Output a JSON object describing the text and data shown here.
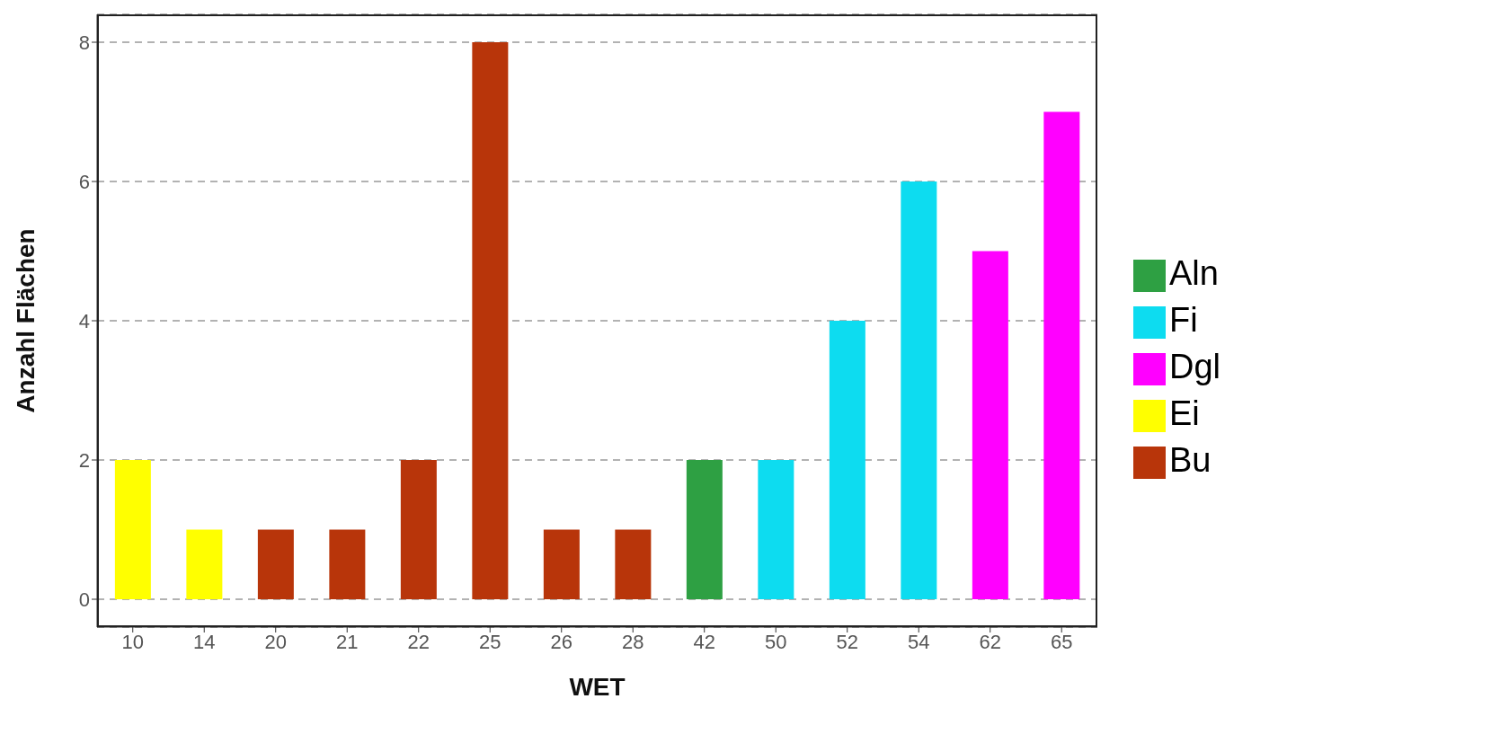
{
  "chart_data": {
    "type": "bar",
    "xlabel": "WET",
    "ylabel": "Anzahl Flächen",
    "categories": [
      "10",
      "14",
      "20",
      "21",
      "22",
      "25",
      "26",
      "28",
      "42",
      "50",
      "52",
      "54",
      "62",
      "65"
    ],
    "stacked": true,
    "series": [
      {
        "name": "Aln",
        "color": "#2ea043",
        "values": [
          null,
          null,
          null,
          null,
          null,
          null,
          null,
          null,
          2,
          null,
          null,
          null,
          null,
          null
        ]
      },
      {
        "name": "Fi",
        "color": "#0ddcf0",
        "values": [
          null,
          null,
          null,
          null,
          null,
          null,
          null,
          null,
          null,
          2,
          4,
          6,
          null,
          null
        ]
      },
      {
        "name": "Dgl",
        "color": "#ff00ff",
        "values": [
          null,
          null,
          null,
          null,
          null,
          null,
          null,
          null,
          null,
          null,
          null,
          null,
          5,
          7
        ]
      },
      {
        "name": "Ei",
        "color": "#ffff00",
        "values": [
          2,
          1,
          null,
          null,
          null,
          null,
          null,
          null,
          null,
          null,
          null,
          null,
          null,
          null
        ]
      },
      {
        "name": "Bu",
        "color": "#b8350a",
        "values": [
          null,
          null,
          1,
          1,
          2,
          8,
          1,
          1,
          null,
          null,
          null,
          null,
          null,
          null
        ]
      }
    ],
    "ylim": [
      -0.4,
      8.4
    ],
    "yticks": [
      0,
      2,
      4,
      6,
      8
    ],
    "grid": "y",
    "legend": "right"
  }
}
